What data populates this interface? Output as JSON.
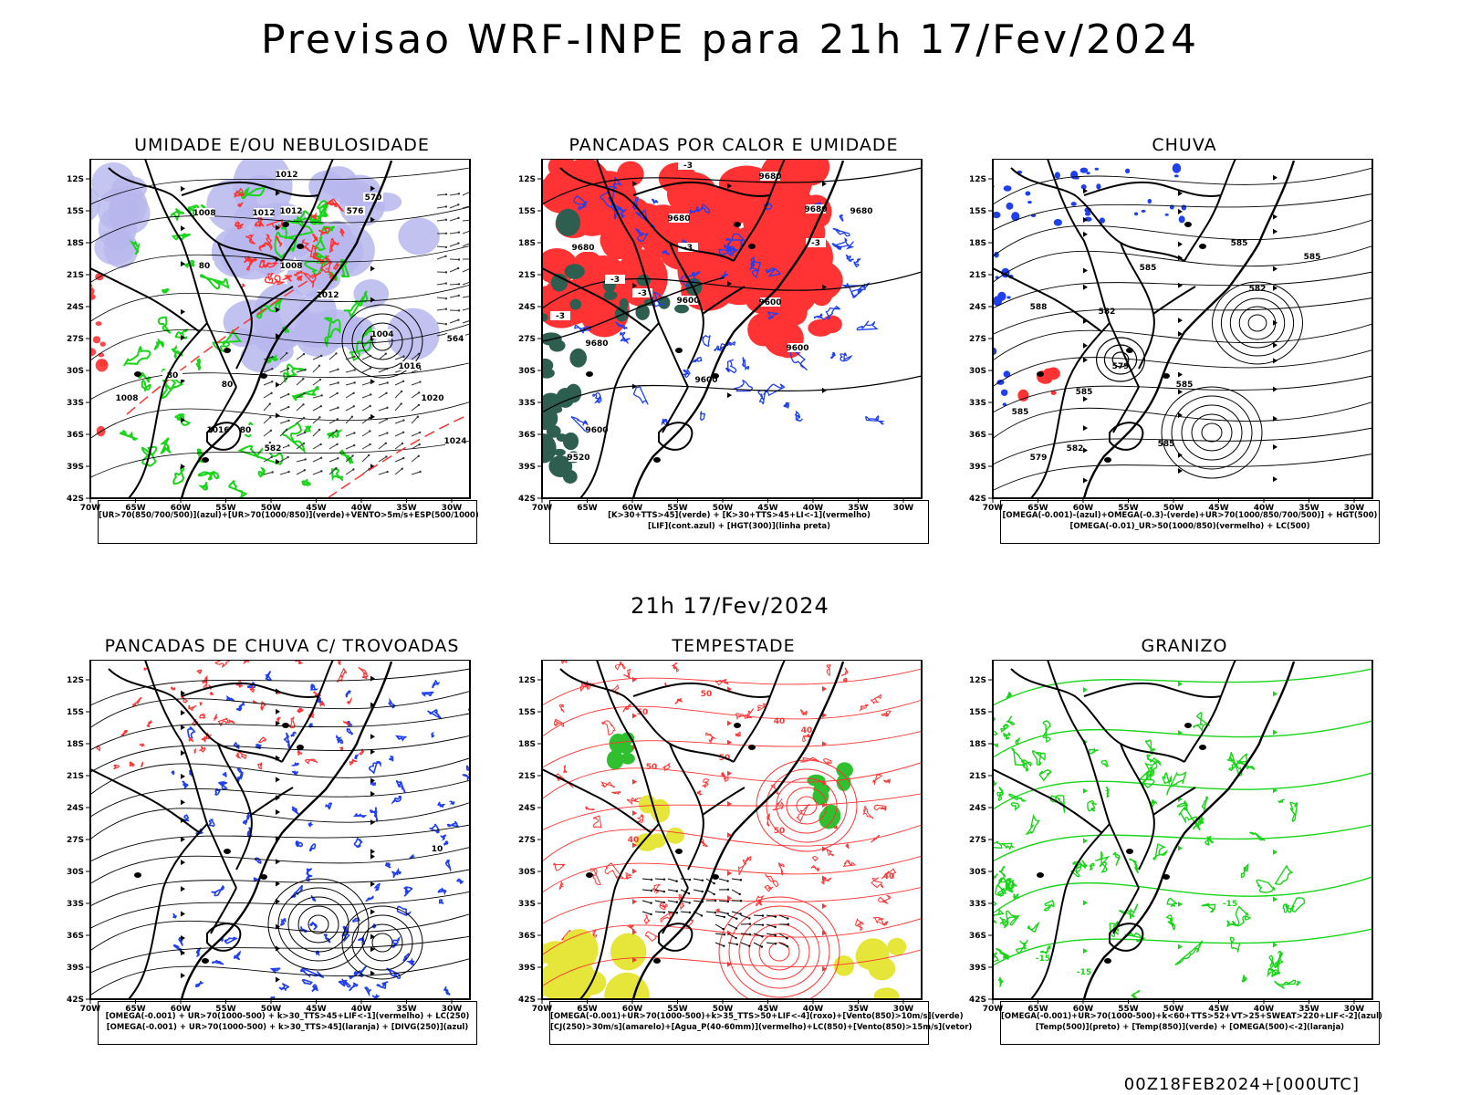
{
  "main_title": "Previsao WRF-INPE  para 21h 17/Fev/2024",
  "mid_title": "21h 17/Fev/2024",
  "footer": "00Z18FEB2024+[000UTC]",
  "axes": {
    "lat_ticks": [
      "12S",
      "15S",
      "18S",
      "21S",
      "24S",
      "27S",
      "30S",
      "33S",
      "36S",
      "39S",
      "42S"
    ],
    "lon_ticks": [
      "70W",
      "65W",
      "60W",
      "55W",
      "50W",
      "45W",
      "40W",
      "35W",
      "30W"
    ]
  },
  "colors": {
    "blue": "#1f3ff0",
    "green": "#19d419",
    "red": "#ff3333",
    "lavender": "#b7b7ee",
    "darkgreen": "#2e5e50",
    "yellow": "#e5e53a"
  },
  "panels": [
    {
      "id": "umidade",
      "title": "UMIDADE E/OU NEBULOSIDADE",
      "legend": [
        "[UR>70(850/700/500)](azul)+[UR>70(1000/850)](verde)+VENTO>5m/s+ESP(500/1000)"
      ],
      "labels": [
        "1012",
        "1008",
        "1012",
        "1012",
        "1016",
        "1020",
        "1024",
        "1016",
        "1004",
        "1012",
        "1008",
        "1008",
        "80",
        "80",
        "80",
        "80",
        "576",
        "570",
        "564",
        "582"
      ]
    },
    {
      "id": "pancadas-calor",
      "title": "PANCADAS POR CALOR E UMIDADE",
      "legend": [
        "[K>30+TTS>45](verde)  +  [K>30+TTS>45+LI<-1](vermelho)",
        "[LIF](cont.azul)  +  [HGT(300)](linha preta)"
      ],
      "labels": [
        "9680",
        "9680",
        "9680",
        "9680",
        "9600",
        "9600",
        "9600",
        "9680",
        "9600",
        "9520",
        "9600",
        "9680",
        "-3",
        "-3",
        "-3",
        "-3",
        "-3",
        "-3"
      ]
    },
    {
      "id": "chuva",
      "title": "CHUVA",
      "legend": [
        "[OMEGA(-0.001)-(azul)+OMEGA(-0.3)-(verde)+UR>70(1000/850/700/500)]  +  HGT(500)",
        "[OMEGA(-0.01)_UR>50(1000/850)(vermelho)  +  LC(500)"
      ],
      "labels": [
        "585",
        "585",
        "585",
        "582",
        "582",
        "579",
        "585",
        "585",
        "585",
        "579",
        "582",
        "585",
        "588"
      ]
    },
    {
      "id": "trovoadas",
      "title": "PANCADAS DE CHUVA C/ TROVOADAS",
      "legend": [
        "[OMEGA(-0.001)  +  UR>70(1000-500)  +  k>30_TTS>45+LIF<-1](vermelho)  +  LC(250)",
        "[OMEGA(-0.001)  +  UR>70(1000-500)  +  k>30_TTS>45](laranja)  +  [DIVG(250)](azul)"
      ],
      "labels": [
        "10"
      ]
    },
    {
      "id": "tempestade",
      "title": "TEMPESTADE",
      "legend": [
        "[OMEGA(-0.001)+UR>70(1000-500)+k>35_TTS>50+LIF<-4](roxo)+[Vento(850)>10m/s](verde)",
        "[CJ(250)>30m/s](amarelo)+[Agua_P(40-60mm)](vermelho)+LC(850)+[Vento(850)>15m/s](vetor)"
      ],
      "labels": [
        "50",
        "50",
        "40",
        "40",
        "50",
        "50",
        "40",
        "50",
        "40"
      ]
    },
    {
      "id": "granizo",
      "title": "GRANIZO",
      "legend": [
        "[OMEGA(-0.001)+UR>70(1000-500)+k<60+TTS>52+VT>25+SWEAT>220+LIF<-2](azul)",
        "[Temp(500)](preto)  +  [Temp(850)](verde)  +  [OMEGA(500)<-2](laranja)"
      ],
      "labels": [
        "-15",
        "-15",
        "-15"
      ]
    }
  ]
}
